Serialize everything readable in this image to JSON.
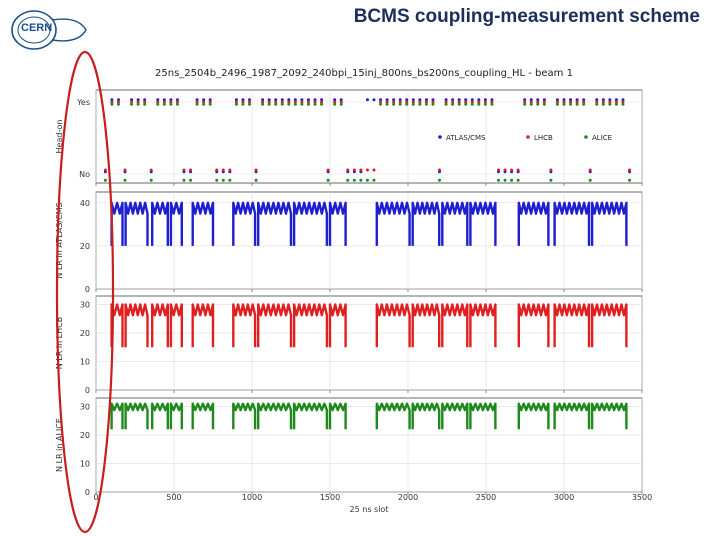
{
  "slide": {
    "title": "BCMS coupling-measurement scheme",
    "logo_text": "CERN"
  },
  "colors": {
    "atlas": "#1f1fd0",
    "lhcb": "#e02020",
    "alice": "#1e8a1e",
    "highlight": "#c81e1e",
    "title": "#1b2f5a"
  },
  "chart_data": {
    "type": "scatter",
    "title": "25ns_2504b_2496_1987_2092_240bpi_15inj_800ns_bs200ns_coupling_HL - beam 1",
    "xlabel": "25 ns slot",
    "x_ticks": [
      "0",
      "500",
      "1000",
      "1500",
      "2000",
      "2500",
      "3000",
      "3500"
    ],
    "xlim": [
      0,
      3500
    ],
    "legend": {
      "position": "upper-right",
      "entries": [
        "ATLAS/CMS",
        "LHCB",
        "ALICE"
      ]
    },
    "panels": [
      {
        "name": "head-on",
        "ylabel": "Head-on",
        "yticks": [
          "Yes",
          "No"
        ],
        "series": [
          {
            "name": "ATLAS/CMS",
            "yes_segments": [
              [
                100,
                170
              ],
              [
                190,
                330
              ],
              [
                360,
                460
              ],
              [
                480,
                550
              ],
              [
                620,
                750
              ],
              [
                880,
                1020
              ],
              [
                1040,
                1250
              ],
              [
                1270,
                1480
              ],
              [
                1500,
                1600
              ],
              [
                1740,
                1800
              ],
              [
                1800,
                2010
              ],
              [
                2030,
                2200
              ],
              [
                2220,
                2380
              ],
              [
                2400,
                2560
              ],
              [
                2710,
                2900
              ],
              [
                2940,
                3160
              ],
              [
                3180,
                3400
              ]
            ]
          },
          {
            "name": "LHCB",
            "yes_segments": [
              [
                100,
                170
              ],
              [
                190,
                330
              ],
              [
                360,
                460
              ],
              [
                480,
                550
              ],
              [
                620,
                750
              ],
              [
                880,
                1020
              ],
              [
                1040,
                1250
              ],
              [
                1270,
                1480
              ],
              [
                1500,
                1600
              ],
              [
                1800,
                2010
              ],
              [
                2030,
                2200
              ],
              [
                2220,
                2380
              ],
              [
                2400,
                2560
              ],
              [
                2710,
                2900
              ],
              [
                2940,
                3160
              ],
              [
                3180,
                3400
              ]
            ]
          },
          {
            "name": "ALICE",
            "yes_segments": [
              [
                100,
                170
              ],
              [
                190,
                330
              ],
              [
                360,
                460
              ],
              [
                480,
                550
              ],
              [
                620,
                750
              ],
              [
                880,
                1020
              ],
              [
                1040,
                1250
              ],
              [
                1270,
                1480
              ],
              [
                1500,
                1600
              ],
              [
                1800,
                2010
              ],
              [
                2030,
                2200
              ],
              [
                2220,
                2380
              ],
              [
                2400,
                2560
              ],
              [
                2710,
                2900
              ],
              [
                2940,
                3160
              ],
              [
                3180,
                3400
              ]
            ]
          }
        ]
      },
      {
        "name": "atlas-cms",
        "ylabel": "N LR in ATLAS/CMS",
        "yticks": [
          "0",
          "20",
          "40"
        ],
        "ylim": [
          0,
          45
        ],
        "series_name": "ATLAS/CMS",
        "low": 20,
        "high": 40
      },
      {
        "name": "lhcb",
        "ylabel": "N LR in LHCB",
        "yticks": [
          "0",
          "10",
          "20",
          "30"
        ],
        "ylim": [
          0,
          33
        ],
        "series_name": "LHCB",
        "low": 15,
        "high": 30
      },
      {
        "name": "alice",
        "ylabel": "N LR in ALICE",
        "yticks": [
          "0",
          "10",
          "20",
          "30"
        ],
        "ylim": [
          0,
          33
        ],
        "series_name": "ALICE",
        "low": 22,
        "high": 31
      }
    ],
    "trains": [
      [
        100,
        170
      ],
      [
        190,
        330
      ],
      [
        360,
        460
      ],
      [
        480,
        550
      ],
      [
        620,
        750
      ],
      [
        880,
        1020
      ],
      [
        1040,
        1250
      ],
      [
        1270,
        1480
      ],
      [
        1500,
        1600
      ],
      [
        1800,
        2010
      ],
      [
        2030,
        2200
      ],
      [
        2220,
        2380
      ],
      [
        2400,
        2560
      ],
      [
        2710,
        2900
      ],
      [
        2940,
        3160
      ],
      [
        3180,
        3400
      ]
    ]
  }
}
